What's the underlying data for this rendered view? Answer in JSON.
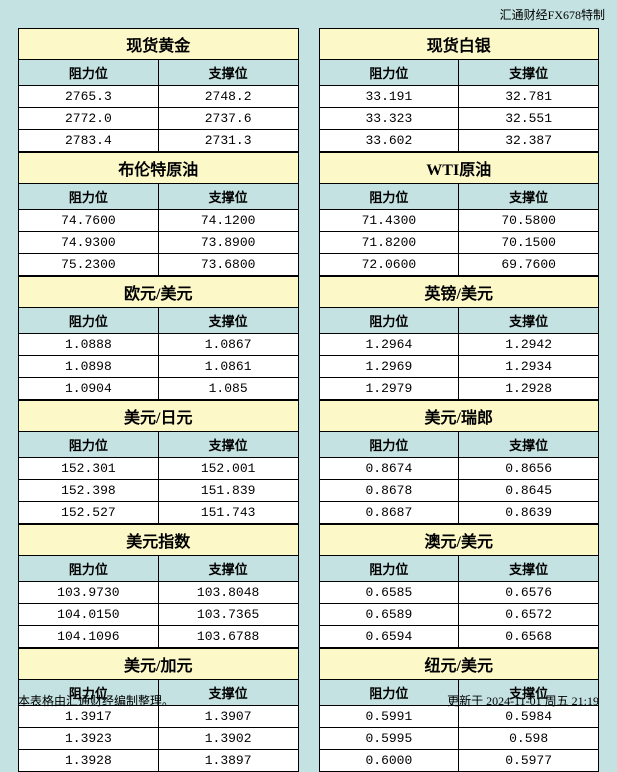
{
  "watermark": "汇通财经FX678特制",
  "footer_left": "本表格由汇通财经编制整理。",
  "footer_right": "更新于 2024-11-01 周五 21:19",
  "headers": {
    "resistance": "阻力位",
    "support": "支撑位"
  },
  "styling": {
    "page_bg": "#c4e2e2",
    "title_bg": "#fcf8c8",
    "header_bg": "#c4e2e2",
    "cell_bg": "#ffffff",
    "border_color": "#000000",
    "title_fontsize": 16,
    "cell_fontsize": 13,
    "footer_fontsize": 12
  },
  "left": [
    {
      "title": "现货黄金",
      "rows": [
        [
          "2765.3",
          "2748.2"
        ],
        [
          "2772.0",
          "2737.6"
        ],
        [
          "2783.4",
          "2731.3"
        ]
      ]
    },
    {
      "title": "布伦特原油",
      "rows": [
        [
          "74.7600",
          "74.1200"
        ],
        [
          "74.9300",
          "73.8900"
        ],
        [
          "75.2300",
          "73.6800"
        ]
      ]
    },
    {
      "title": "欧元/美元",
      "rows": [
        [
          "1.0888",
          "1.0867"
        ],
        [
          "1.0898",
          "1.0861"
        ],
        [
          "1.0904",
          "1.085"
        ]
      ]
    },
    {
      "title": "美元/日元",
      "rows": [
        [
          "152.301",
          "152.001"
        ],
        [
          "152.398",
          "151.839"
        ],
        [
          "152.527",
          "151.743"
        ]
      ]
    },
    {
      "title": "美元指数",
      "rows": [
        [
          "103.9730",
          "103.8048"
        ],
        [
          "104.0150",
          "103.7365"
        ],
        [
          "104.1096",
          "103.6788"
        ]
      ]
    },
    {
      "title": "美元/加元",
      "rows": [
        [
          "1.3917",
          "1.3907"
        ],
        [
          "1.3923",
          "1.3902"
        ],
        [
          "1.3928",
          "1.3897"
        ]
      ]
    }
  ],
  "right": [
    {
      "title": "现货白银",
      "rows": [
        [
          "33.191",
          "32.781"
        ],
        [
          "33.323",
          "32.551"
        ],
        [
          "33.602",
          "32.387"
        ]
      ]
    },
    {
      "title": "WTI原油",
      "rows": [
        [
          "71.4300",
          "70.5800"
        ],
        [
          "71.8200",
          "70.1500"
        ],
        [
          "72.0600",
          "69.7600"
        ]
      ]
    },
    {
      "title": "英镑/美元",
      "rows": [
        [
          "1.2964",
          "1.2942"
        ],
        [
          "1.2969",
          "1.2934"
        ],
        [
          "1.2979",
          "1.2928"
        ]
      ]
    },
    {
      "title": "美元/瑞郎",
      "rows": [
        [
          "0.8674",
          "0.8656"
        ],
        [
          "0.8678",
          "0.8645"
        ],
        [
          "0.8687",
          "0.8639"
        ]
      ]
    },
    {
      "title": "澳元/美元",
      "rows": [
        [
          "0.6585",
          "0.6576"
        ],
        [
          "0.6589",
          "0.6572"
        ],
        [
          "0.6594",
          "0.6568"
        ]
      ]
    },
    {
      "title": "纽元/美元",
      "rows": [
        [
          "0.5991",
          "0.5984"
        ],
        [
          "0.5995",
          "0.598"
        ],
        [
          "0.6000",
          "0.5977"
        ]
      ]
    }
  ]
}
